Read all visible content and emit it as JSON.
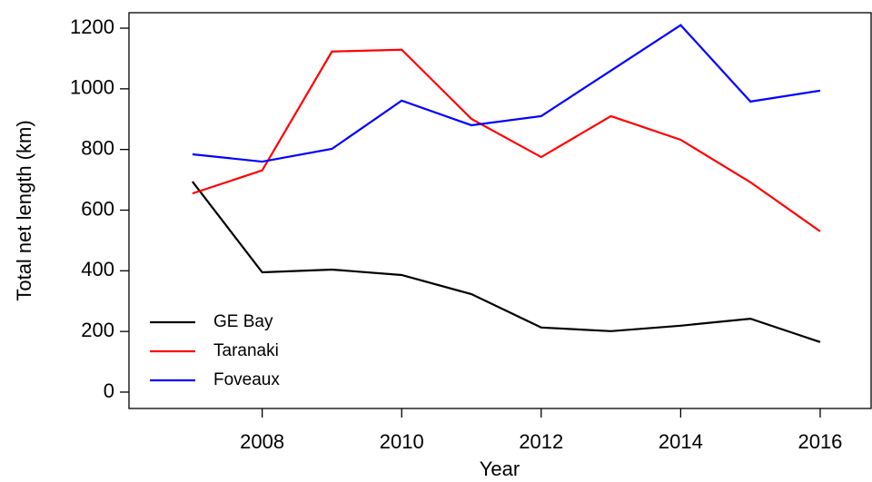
{
  "chart_data": {
    "type": "line",
    "x": [
      2007,
      2008,
      2009,
      2010,
      2011,
      2012,
      2013,
      2014,
      2015,
      2016
    ],
    "series": [
      {
        "name": "GE Bay",
        "color": "#000000",
        "values": [
          694,
          395,
          404,
          386,
          323,
          213,
          201,
          219,
          242,
          165
        ]
      },
      {
        "name": "Taranaki",
        "color": "#ff0000",
        "values": [
          655,
          731,
          1123,
          1129,
          901,
          775,
          910,
          832,
          692,
          530
        ]
      },
      {
        "name": "Foveaux",
        "color": "#0000ff",
        "values": [
          784,
          760,
          802,
          961,
          880,
          910,
          1060,
          1210,
          958,
          994
        ]
      }
    ],
    "xlabel": "Year",
    "ylabel": "Total net length (km)",
    "xlim": [
      2006.09,
      2016.73
    ],
    "xticks": [
      2008,
      2010,
      2012,
      2014,
      2016
    ],
    "ylim": [
      -54,
      1251
    ],
    "yticks": [
      0,
      200,
      400,
      600,
      800,
      1000,
      1200
    ],
    "legend": "bottom-left"
  }
}
